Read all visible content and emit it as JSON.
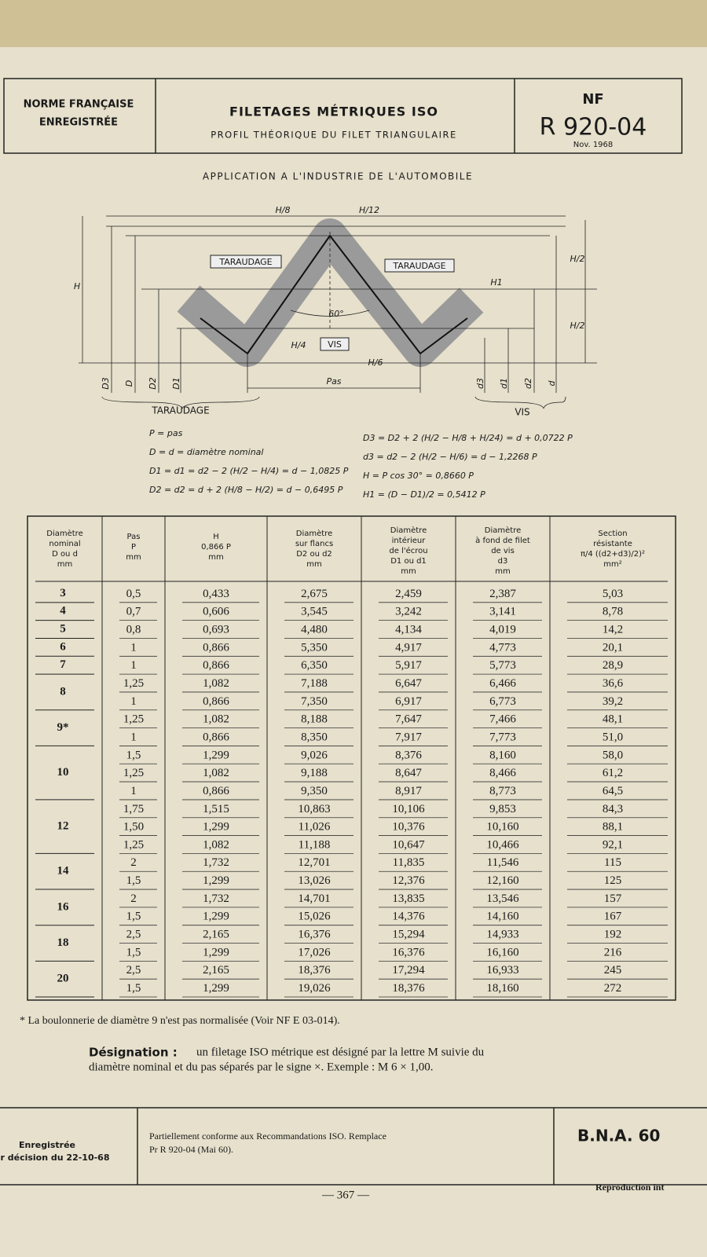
{
  "header": {
    "org": [
      "NORME FRANÇAISE",
      "ENREGISTRÉE"
    ],
    "title": "FILETAGES MÉTRIQUES ISO",
    "subtitle": "PROFIL THÉORIQUE DU FILET TRIANGULAIRE",
    "nf": "NF",
    "code": "R 920-04",
    "date": "Nov. 1968"
  },
  "section_title": "APPLICATION A L'INDUSTRIE DE L'AUTOMOBILE",
  "diagram": {
    "taraudage_left": "TARAUDAGE",
    "taraudage_right": "TARAUDAGE",
    "vis": "VIS",
    "angle": "60°",
    "pas": "Pas",
    "h8": "H/8",
    "h12": "H/12",
    "h2_top": "H/2",
    "h2_bottom": "H/2",
    "h1": "H1",
    "h4": "H/4",
    "h6": "H/6",
    "h": "H",
    "left_dims": [
      "D3",
      "D",
      "D2",
      "D1"
    ],
    "right_dims": [
      "d3",
      "d1",
      "d2",
      "d"
    ],
    "bottom_left": "TARAUDAGE",
    "bottom_right": "VIS"
  },
  "formulas": {
    "left": [
      "P = pas",
      "D = d = diamètre nominal",
      "D1 = d1 = d2 − 2 (H/2 − H/4) = d − 1,0825 P",
      "D2 = d2 = d + 2 (H/8 − H/2) = d − 0,6495 P"
    ],
    "right": [
      "D3 = D2 + 2 (H/2 − H/8 + H/24) = d + 0,0722 P",
      "d3 = d2 − 2 (H/2 − H/6) = d − 1,2268 P",
      "H = P cos 30° = 0,8660 P",
      "H1 = (D − D1)/2 = 0,5412 P"
    ]
  },
  "table": {
    "headers": [
      [
        "Diamètre",
        "nominal",
        "D ou d",
        "mm"
      ],
      [
        "Pas",
        "P",
        "mm"
      ],
      [
        "H",
        "0,866 P",
        "mm"
      ],
      [
        "Diamètre",
        "sur flancs",
        "D2 ou d2",
        "mm"
      ],
      [
        "Diamètre",
        "intérieur",
        "de l'écrou",
        "D1 ou d1",
        "mm"
      ],
      [
        "Diamètre",
        "à fond de filet",
        "de vis",
        "d3",
        "mm"
      ],
      [
        "Section",
        "résistante",
        "π/4 ((d2+d3)/2)²",
        "mm²"
      ]
    ],
    "groups": [
      {
        "diameter": "3",
        "rows": [
          [
            "0,5",
            "0,433",
            "2,675",
            "2,459",
            "2,387",
            "5,03"
          ]
        ]
      },
      {
        "diameter": "4",
        "rows": [
          [
            "0,7",
            "0,606",
            "3,545",
            "3,242",
            "3,141",
            "8,78"
          ]
        ]
      },
      {
        "diameter": "5",
        "rows": [
          [
            "0,8",
            "0,693",
            "4,480",
            "4,134",
            "4,019",
            "14,2"
          ]
        ]
      },
      {
        "diameter": "6",
        "rows": [
          [
            "1",
            "0,866",
            "5,350",
            "4,917",
            "4,773",
            "20,1"
          ]
        ]
      },
      {
        "diameter": "7",
        "rows": [
          [
            "1",
            "0,866",
            "6,350",
            "5,917",
            "5,773",
            "28,9"
          ]
        ]
      },
      {
        "diameter": "8",
        "rows": [
          [
            "1,25",
            "1,082",
            "7,188",
            "6,647",
            "6,466",
            "36,6"
          ],
          [
            "1",
            "0,866",
            "7,350",
            "6,917",
            "6,773",
            "39,2"
          ]
        ]
      },
      {
        "diameter": "9*",
        "rows": [
          [
            "1,25",
            "1,082",
            "8,188",
            "7,647",
            "7,466",
            "48,1"
          ],
          [
            "1",
            "0,866",
            "8,350",
            "7,917",
            "7,773",
            "51,0"
          ]
        ]
      },
      {
        "diameter": "10",
        "rows": [
          [
            "1,5",
            "1,299",
            "9,026",
            "8,376",
            "8,160",
            "58,0"
          ],
          [
            "1,25",
            "1,082",
            "9,188",
            "8,647",
            "8,466",
            "61,2"
          ],
          [
            "1",
            "0,866",
            "9,350",
            "8,917",
            "8,773",
            "64,5"
          ]
        ]
      },
      {
        "diameter": "12",
        "rows": [
          [
            "1,75",
            "1,515",
            "10,863",
            "10,106",
            "9,853",
            "84,3"
          ],
          [
            "1,50",
            "1,299",
            "11,026",
            "10,376",
            "10,160",
            "88,1"
          ],
          [
            "1,25",
            "1,082",
            "11,188",
            "10,647",
            "10,466",
            "92,1"
          ]
        ]
      },
      {
        "diameter": "14",
        "rows": [
          [
            "2",
            "1,732",
            "12,701",
            "11,835",
            "11,546",
            "115"
          ],
          [
            "1,5",
            "1,299",
            "13,026",
            "12,376",
            "12,160",
            "125"
          ]
        ]
      },
      {
        "diameter": "16",
        "rows": [
          [
            "2",
            "1,732",
            "14,701",
            "13,835",
            "13,546",
            "157"
          ],
          [
            "1,5",
            "1,299",
            "15,026",
            "14,376",
            "14,160",
            "167"
          ]
        ]
      },
      {
        "diameter": "18",
        "rows": [
          [
            "2,5",
            "2,165",
            "16,376",
            "15,294",
            "14,933",
            "192"
          ],
          [
            "1,5",
            "1,299",
            "17,026",
            "16,376",
            "16,160",
            "216"
          ]
        ]
      },
      {
        "diameter": "20",
        "rows": [
          [
            "2,5",
            "2,165",
            "18,376",
            "17,294",
            "16,933",
            "245"
          ],
          [
            "1,5",
            "1,299",
            "19,026",
            "18,376",
            "18,160",
            "272"
          ]
        ]
      }
    ]
  },
  "footnote": "* La boulonnerie de diamètre 9 n'est pas normalisée (Voir NF E 03-014).",
  "designation": {
    "label": "Désignation :",
    "lines": [
      "un filetage ISO métrique est désigné par la lettre M suivie du",
      "diamètre nominal et du pas séparés par le signe ×. Exemple : M 6 × 1,00."
    ]
  },
  "footer": {
    "left": [
      "Enregistrée",
      "r décision du 22-10-68"
    ],
    "middle": [
      "Partiellement conforme aux Recommandations ISO. Remplace",
      "Pr R 920-04 (Mai 60)."
    ],
    "right": "B.N.A. 60",
    "page": "— 367 —",
    "reproduction": "Reproduction int"
  }
}
